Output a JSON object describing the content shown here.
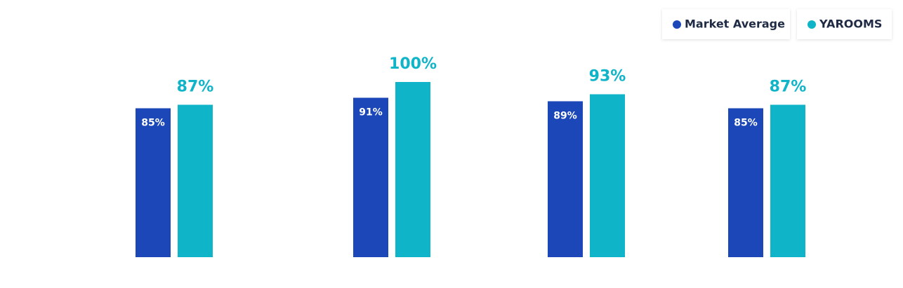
{
  "chart_data": {
    "type": "bar",
    "categories": [
      null,
      null,
      null,
      null
    ],
    "series": [
      {
        "name": "Market Average",
        "color": "#1c47b8",
        "values": [
          85,
          91,
          89,
          85
        ],
        "value_labels": [
          "85%",
          "91%",
          "89%",
          "85%"
        ]
      },
      {
        "name": "YAROOMS",
        "color": "#10b4c9",
        "values": [
          87,
          100,
          93,
          87
        ],
        "value_labels": [
          "87%",
          "100%",
          "93%",
          "87%"
        ]
      }
    ],
    "legend": "top-right"
  }
}
